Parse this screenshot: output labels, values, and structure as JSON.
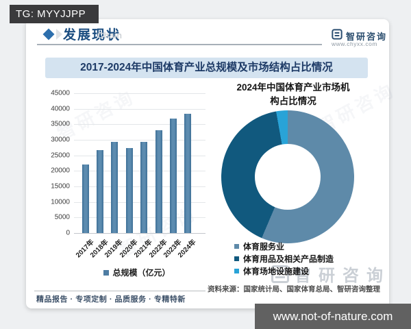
{
  "overlays": {
    "tg_label": "TG: MYYJJPP",
    "site_label": "www.not-of-nature.com"
  },
  "header": {
    "section_title": "发展现状"
  },
  "brand": {
    "name": "智研咨询",
    "url": "www.chyxx.com"
  },
  "banner": {
    "title": "2017-2024年中国体育产业总规模及市场结构占比情况"
  },
  "watermarks": {
    "chain": "Chain",
    "brand": "智研咨询"
  },
  "chart_data": [
    {
      "type": "bar",
      "title": "2017-2024年中国体育产业总规模",
      "categories": [
        "2017年",
        "2018年",
        "2019年",
        "2020年",
        "2021年",
        "2022年",
        "2023年",
        "2024年"
      ],
      "values": [
        22000,
        26600,
        29400,
        27400,
        29400,
        33000,
        36800,
        38400
      ],
      "legend_label": "总规模（亿元）",
      "xlabel": "",
      "ylabel": "",
      "ylim": [
        0,
        45000
      ],
      "ytick_step": 5000,
      "grid": true,
      "bar_color": "#4e7da3"
    },
    {
      "type": "pie",
      "donut": true,
      "title": "2024年中国体育产业市场机构占比情况",
      "title_lines": [
        "2024年中国体育产业市场机",
        "构占比情况"
      ],
      "labels": [
        "体育服务业",
        "体育用品及相关产品制造",
        "体育场地设施建设"
      ],
      "values": [
        56.4,
        40.8,
        2.8
      ],
      "colors": [
        "#5e8aa9",
        "#11597e",
        "#29a3d7"
      ],
      "start_angle_deg": 0,
      "clockwise": true,
      "legend_position": "bottom-left"
    }
  ],
  "source": {
    "text": "资料来源：国家统计局、国家体育总局、智研咨询整理"
  },
  "footer": {
    "tagline": "精品报告 · 专项定制 · 品质服务 · 专精特新"
  },
  "colors": {
    "banner_bg": "#d4e3f0",
    "banner_text": "#1d3a66",
    "header_accent": "#2d6fad",
    "header_text": "#1b4d80",
    "tg_bar_bg": "#3a3a3c",
    "site_bar_bg": "#616161",
    "bar_fill": "#4e7da3",
    "donut_service": "#5e8aa9",
    "donut_goods": "#11597e",
    "donut_venue": "#29a3d7"
  }
}
